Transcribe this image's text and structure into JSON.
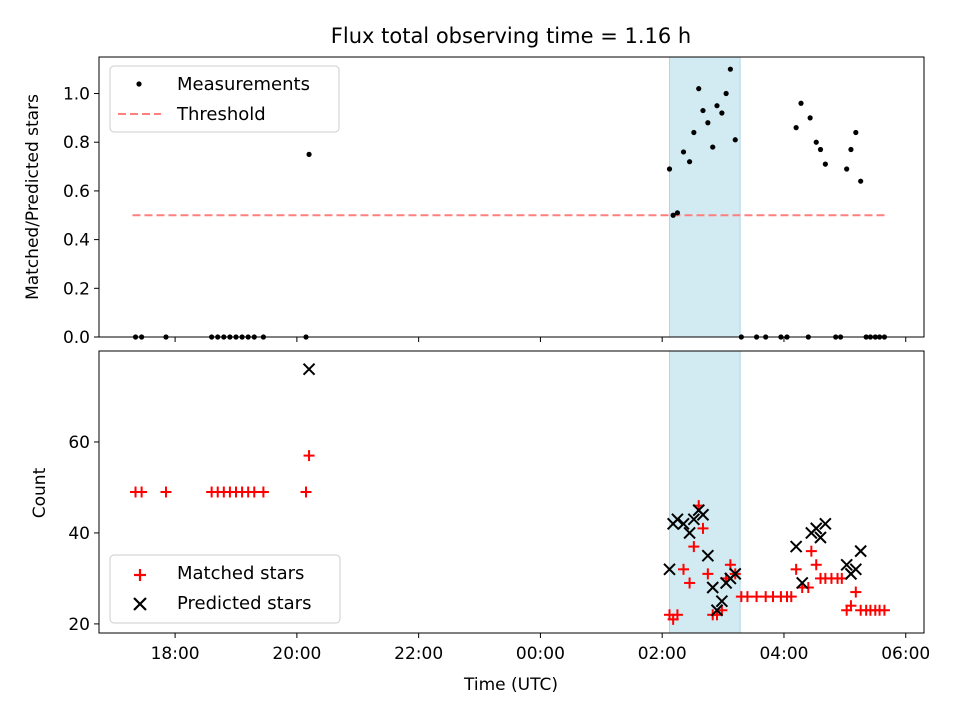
{
  "chart_data": {
    "type": "scatter",
    "title": "Flux total observing time = 1.16 h",
    "xlabel": "Time (UTC)",
    "x_units": "hours since 00:00 UTC",
    "x_range": [
      -7.25,
      6.3
    ],
    "x_ticks": [
      -6,
      -4,
      -2,
      0,
      2,
      4,
      6
    ],
    "x_tick_labels": [
      "18:00",
      "20:00",
      "22:00",
      "00:00",
      "02:00",
      "04:00",
      "06:00"
    ],
    "highlight_span": {
      "x_start": 2.12,
      "x_end": 3.28,
      "color": "#add8e6"
    },
    "colors": {
      "measurements": "#000000",
      "threshold": "#ff7f7f",
      "matched": "#ff0000",
      "predicted": "#000000",
      "span": "#add8e6"
    },
    "top_panel": {
      "ylabel": "Matched/Predicted stars",
      "ylim": [
        0,
        1.15
      ],
      "y_ticks": [
        0,
        0.2,
        0.4,
        0.6,
        0.8,
        1.0
      ],
      "y_tick_labels": [
        "0.0",
        "0.2",
        "0.4",
        "0.6",
        "0.8",
        "1.0"
      ],
      "legend_position": "top-left",
      "threshold": {
        "name": "Threshold",
        "y": 0.5,
        "x": [
          -6.7,
          5.7
        ]
      },
      "series": [
        {
          "name": "Measurements",
          "points": [
            [
              -6.65,
              0
            ],
            [
              -6.55,
              0
            ],
            [
              -6.15,
              0
            ],
            [
              -5.4,
              0
            ],
            [
              -5.3,
              0
            ],
            [
              -5.2,
              0
            ],
            [
              -5.1,
              0
            ],
            [
              -5.0,
              0
            ],
            [
              -4.9,
              0
            ],
            [
              -4.8,
              0
            ],
            [
              -4.7,
              0
            ],
            [
              -4.55,
              0
            ],
            [
              -3.85,
              0
            ],
            [
              -3.8,
              0.75
            ],
            [
              2.12,
              0.69
            ],
            [
              2.18,
              0.5
            ],
            [
              2.25,
              0.51
            ],
            [
              2.35,
              0.76
            ],
            [
              2.45,
              0.72
            ],
            [
              2.52,
              0.84
            ],
            [
              2.6,
              1.02
            ],
            [
              2.67,
              0.93
            ],
            [
              2.75,
              0.88
            ],
            [
              2.83,
              0.78
            ],
            [
              2.9,
              0.95
            ],
            [
              2.98,
              0.92
            ],
            [
              3.05,
              1.0
            ],
            [
              3.12,
              1.1
            ],
            [
              3.2,
              0.81
            ],
            [
              3.3,
              0
            ],
            [
              3.55,
              0
            ],
            [
              3.7,
              0
            ],
            [
              3.95,
              0
            ],
            [
              4.05,
              0
            ],
            [
              4.2,
              0.86
            ],
            [
              4.28,
              0.96
            ],
            [
              4.43,
              0.9
            ],
            [
              4.53,
              0.8
            ],
            [
              4.6,
              0.77
            ],
            [
              4.68,
              0.71
            ],
            [
              5.03,
              0.69
            ],
            [
              5.1,
              0.77
            ],
            [
              5.18,
              0.84
            ],
            [
              5.26,
              0.64
            ],
            [
              4.4,
              0
            ],
            [
              4.85,
              0
            ],
            [
              4.93,
              0
            ],
            [
              5.35,
              0
            ],
            [
              5.42,
              0
            ],
            [
              5.5,
              0
            ],
            [
              5.57,
              0
            ],
            [
              5.65,
              0
            ]
          ]
        }
      ]
    },
    "bottom_panel": {
      "ylabel": "Count",
      "ylim": [
        18,
        80
      ],
      "y_ticks": [
        20,
        40,
        60
      ],
      "y_tick_labels": [
        "20",
        "40",
        "60"
      ],
      "legend_position": "bottom-left",
      "series": [
        {
          "name": "Matched stars",
          "marker": "plus",
          "points": [
            [
              -6.65,
              49
            ],
            [
              -6.55,
              49
            ],
            [
              -6.15,
              49
            ],
            [
              -5.4,
              49
            ],
            [
              -5.3,
              49
            ],
            [
              -5.2,
              49
            ],
            [
              -5.1,
              49
            ],
            [
              -5.0,
              49
            ],
            [
              -4.9,
              49
            ],
            [
              -4.8,
              49
            ],
            [
              -4.7,
              49
            ],
            [
              -4.55,
              49
            ],
            [
              -3.85,
              49
            ],
            [
              -3.8,
              57
            ],
            [
              2.12,
              22
            ],
            [
              2.18,
              21
            ],
            [
              2.25,
              22
            ],
            [
              2.35,
              32
            ],
            [
              2.45,
              29
            ],
            [
              2.52,
              37
            ],
            [
              2.6,
              46
            ],
            [
              2.67,
              41
            ],
            [
              2.75,
              31
            ],
            [
              2.83,
              22
            ],
            [
              2.9,
              22
            ],
            [
              2.98,
              23
            ],
            [
              3.05,
              30
            ],
            [
              3.12,
              33
            ],
            [
              3.2,
              31
            ],
            [
              3.3,
              26
            ],
            [
              3.4,
              26
            ],
            [
              3.55,
              26
            ],
            [
              3.7,
              26
            ],
            [
              3.82,
              26
            ],
            [
              3.95,
              26
            ],
            [
              4.05,
              26
            ],
            [
              4.12,
              26
            ],
            [
              4.2,
              32
            ],
            [
              4.3,
              28
            ],
            [
              4.4,
              28
            ],
            [
              4.45,
              36
            ],
            [
              4.53,
              33
            ],
            [
              4.6,
              30
            ],
            [
              4.68,
              30
            ],
            [
              4.78,
              30
            ],
            [
              4.88,
              30
            ],
            [
              4.95,
              30
            ],
            [
              5.03,
              23
            ],
            [
              5.1,
              24
            ],
            [
              5.18,
              27
            ],
            [
              5.26,
              23
            ],
            [
              5.35,
              23
            ],
            [
              5.42,
              23
            ],
            [
              5.5,
              23
            ],
            [
              5.57,
              23
            ],
            [
              5.65,
              23
            ]
          ]
        },
        {
          "name": "Predicted stars",
          "marker": "cross",
          "points": [
            [
              -3.8,
              76
            ],
            [
              2.12,
              32
            ],
            [
              2.18,
              42
            ],
            [
              2.25,
              43
            ],
            [
              2.35,
              42
            ],
            [
              2.45,
              40
            ],
            [
              2.52,
              43
            ],
            [
              2.6,
              45
            ],
            [
              2.67,
              44
            ],
            [
              2.75,
              35
            ],
            [
              2.83,
              28
            ],
            [
              2.9,
              23
            ],
            [
              2.98,
              25
            ],
            [
              3.05,
              29
            ],
            [
              3.12,
              30
            ],
            [
              3.2,
              31
            ],
            [
              4.2,
              37
            ],
            [
              4.3,
              29
            ],
            [
              4.45,
              40
            ],
            [
              4.53,
              41
            ],
            [
              4.6,
              39
            ],
            [
              4.68,
              42
            ],
            [
              5.03,
              33
            ],
            [
              5.1,
              31
            ],
            [
              5.18,
              32
            ],
            [
              5.26,
              36
            ]
          ]
        }
      ]
    }
  }
}
